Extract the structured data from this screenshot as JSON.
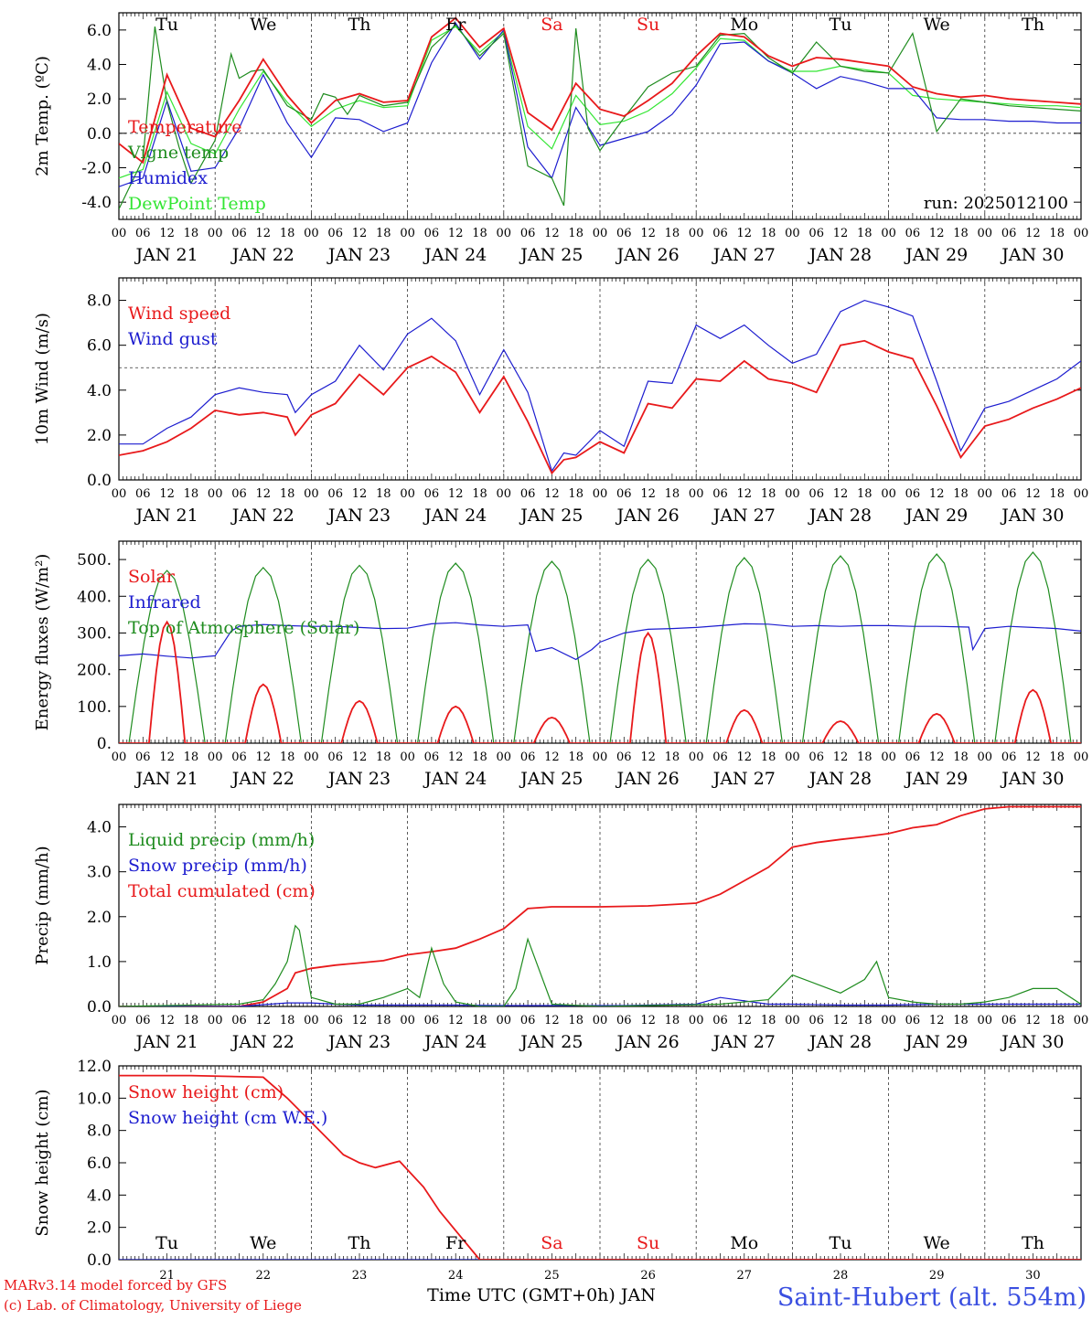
{
  "days": [
    "21",
    "22",
    "23",
    "24",
    "25",
    "26",
    "27",
    "28",
    "29",
    "30"
  ],
  "day_labels": [
    "JAN 21",
    "JAN 22",
    "JAN 23",
    "JAN 24",
    "JAN 25",
    "JAN 26",
    "JAN 27",
    "JAN 28",
    "JAN 29",
    "JAN 30"
  ],
  "weekdays": [
    "Tu",
    "We",
    "Th",
    "Fr",
    "Sa",
    "Su",
    "Mo",
    "Tu",
    "We",
    "Th"
  ],
  "weekend_weekdays": [
    "Sa",
    "Su"
  ],
  "hour_labels": [
    "00",
    "06",
    "12",
    "18"
  ],
  "end_hour_label": "00",
  "colors": {
    "red": "#e8191b",
    "green": "#1f8c1f",
    "blue": "#1c1ccf",
    "lime": "#33e633",
    "weekend": "#e8191b",
    "title": "#3a4fe0"
  },
  "footer": {
    "left_line1": "MARv3.14 model forced by GFS",
    "left_line2": "(c) Lab. of Climatology, University of Liege",
    "xlabel": "Time UTC (GMT+0h) JAN",
    "station": "Saint-Hubert (alt. 554m)"
  },
  "chart_data": [
    {
      "type": "line",
      "ylabel": "2m Temp. (ºC)",
      "ylim": [
        -5,
        7
      ],
      "yticks": [
        -4,
        -2,
        0,
        2,
        4,
        6
      ],
      "ytick_labels": [
        "-4.0",
        "-2.0",
        "0.0",
        "2.0",
        "4.0",
        "6.0"
      ],
      "reference_line": 0,
      "annotation": "run: 2025012100",
      "x_unit": "hours since JAN 21 00 UTC",
      "series": [
        {
          "name": "Temperature",
          "color": "red",
          "x": [
            0,
            6,
            12,
            18,
            24,
            30,
            36,
            42,
            48,
            54,
            60,
            66,
            72,
            78,
            84,
            90,
            96,
            102,
            108,
            114,
            120,
            126,
            132,
            138,
            144,
            150,
            156,
            162,
            168,
            174,
            180,
            186,
            192,
            198,
            204,
            210,
            216,
            222,
            228,
            234,
            240
          ],
          "y": [
            -0.6,
            -1.7,
            3.4,
            0.3,
            -0.2,
            1.9,
            4.3,
            2.2,
            0.6,
            1.9,
            2.3,
            1.8,
            1.9,
            5.6,
            6.7,
            5.0,
            6.1,
            1.2,
            0.2,
            2.9,
            1.4,
            1.0,
            1.9,
            2.9,
            4.5,
            5.8,
            5.6,
            4.5,
            3.9,
            4.4,
            4.3,
            4.1,
            3.9,
            2.7,
            2.3,
            2.1,
            2.2,
            2.0,
            1.9,
            1.8,
            1.7
          ]
        },
        {
          "name": "Vigne temp",
          "color": "green",
          "x": [
            0,
            6,
            9,
            12,
            15,
            18,
            24,
            28,
            30,
            33,
            36,
            42,
            48,
            51,
            54,
            57,
            60,
            66,
            72,
            78,
            84,
            90,
            96,
            102,
            108,
            111,
            114,
            117,
            120,
            126,
            132,
            138,
            144,
            150,
            156,
            162,
            168,
            174,
            180,
            186,
            192,
            198,
            204,
            210,
            216,
            222,
            228,
            234,
            240
          ],
          "y": [
            -4.4,
            -1.5,
            6.2,
            1.8,
            -0.8,
            -2.9,
            -0.4,
            4.6,
            3.2,
            3.6,
            3.7,
            1.6,
            0.8,
            2.3,
            2.1,
            1.1,
            2.2,
            1.6,
            1.8,
            5.0,
            6.3,
            4.5,
            5.8,
            -1.9,
            -2.6,
            -4.2,
            6.1,
            0.3,
            -1.0,
            0.9,
            2.7,
            3.5,
            3.9,
            5.7,
            5.8,
            4.4,
            3.5,
            5.3,
            3.9,
            3.6,
            3.5,
            5.8,
            0.1,
            2.0,
            1.8,
            1.6,
            1.5,
            1.4,
            1.3
          ]
        },
        {
          "name": "Humidex",
          "color": "blue",
          "x": [
            0,
            6,
            12,
            18,
            24,
            30,
            36,
            42,
            48,
            54,
            60,
            66,
            72,
            78,
            84,
            90,
            96,
            102,
            108,
            114,
            120,
            126,
            132,
            138,
            144,
            150,
            156,
            162,
            168,
            174,
            180,
            186,
            192,
            198,
            204,
            210,
            216,
            222,
            228,
            234,
            240
          ],
          "y": [
            -3.1,
            -2.6,
            1.9,
            -2.2,
            -2.0,
            0.3,
            3.4,
            0.6,
            -1.4,
            0.9,
            0.8,
            0.1,
            0.6,
            4.1,
            6.4,
            4.3,
            6.0,
            -0.8,
            -2.6,
            1.5,
            -0.7,
            -0.3,
            0.1,
            1.1,
            2.8,
            5.2,
            5.3,
            4.2,
            3.5,
            2.6,
            3.3,
            3.0,
            2.6,
            2.6,
            0.9,
            0.8,
            0.8,
            0.7,
            0.7,
            0.6,
            0.6
          ]
        },
        {
          "name": "DewPoint Temp",
          "color": "lime",
          "x": [
            0,
            6,
            12,
            18,
            24,
            30,
            36,
            42,
            48,
            54,
            60,
            66,
            72,
            78,
            84,
            90,
            96,
            102,
            108,
            114,
            120,
            126,
            132,
            138,
            144,
            150,
            156,
            162,
            168,
            174,
            180,
            186,
            192,
            198,
            204,
            210,
            216,
            222,
            228,
            234,
            240
          ],
          "y": [
            -2.6,
            -2.1,
            2.4,
            -0.6,
            -1.2,
            1.4,
            3.6,
            1.8,
            0.4,
            1.4,
            1.9,
            1.5,
            1.6,
            5.4,
            6.2,
            4.7,
            5.9,
            0.4,
            -0.9,
            2.2,
            0.5,
            0.7,
            1.3,
            2.3,
            3.8,
            5.5,
            5.4,
            4.2,
            3.6,
            3.6,
            3.9,
            3.7,
            3.5,
            2.2,
            2.0,
            1.9,
            1.8,
            1.7,
            1.6,
            1.6,
            1.5
          ]
        }
      ]
    },
    {
      "type": "line",
      "ylabel": "10m Wind (m/s)",
      "ylim": [
        0,
        9
      ],
      "yticks": [
        0,
        2,
        4,
        6,
        8
      ],
      "ytick_labels": [
        "0.0",
        "2.0",
        "4.0",
        "6.0",
        "8.0"
      ],
      "reference_line": 5,
      "series": [
        {
          "name": "Wind speed",
          "color": "red",
          "x": [
            0,
            6,
            12,
            18,
            24,
            30,
            36,
            42,
            44,
            48,
            54,
            60,
            66,
            72,
            78,
            84,
            90,
            96,
            102,
            108,
            111,
            114,
            120,
            126,
            132,
            138,
            144,
            150,
            156,
            162,
            168,
            174,
            180,
            186,
            192,
            198,
            204,
            210,
            216,
            222,
            228,
            234,
            240
          ],
          "y": [
            1.1,
            1.3,
            1.7,
            2.3,
            3.1,
            2.9,
            3.0,
            2.8,
            2.0,
            2.9,
            3.4,
            4.7,
            3.8,
            5.0,
            5.5,
            4.8,
            3.0,
            4.6,
            2.6,
            0.3,
            0.9,
            1.0,
            1.7,
            1.2,
            3.4,
            3.2,
            4.5,
            4.4,
            5.3,
            4.5,
            4.3,
            3.9,
            6.0,
            6.2,
            5.7,
            5.4,
            3.3,
            1.0,
            2.4,
            2.7,
            3.2,
            3.6,
            4.1
          ]
        },
        {
          "name": "Wind gust",
          "color": "blue",
          "x": [
            0,
            6,
            12,
            18,
            24,
            30,
            36,
            42,
            44,
            48,
            54,
            60,
            66,
            72,
            78,
            84,
            90,
            96,
            102,
            108,
            111,
            114,
            120,
            126,
            132,
            138,
            144,
            150,
            156,
            162,
            168,
            174,
            180,
            186,
            192,
            198,
            204,
            210,
            216,
            222,
            228,
            234,
            240
          ],
          "y": [
            1.6,
            1.6,
            2.3,
            2.8,
            3.8,
            4.1,
            3.9,
            3.8,
            3.0,
            3.8,
            4.4,
            6.0,
            4.9,
            6.5,
            7.2,
            6.2,
            3.8,
            5.8,
            3.9,
            0.4,
            1.2,
            1.1,
            2.2,
            1.5,
            4.4,
            4.3,
            6.9,
            6.3,
            6.9,
            6.0,
            5.2,
            5.6,
            7.5,
            8.0,
            7.7,
            7.3,
            4.4,
            1.3,
            3.2,
            3.5,
            4.0,
            4.5,
            5.3
          ]
        }
      ]
    },
    {
      "type": "line",
      "ylabel": "Energy fluxes (W/m²)",
      "ylim": [
        0,
        550
      ],
      "yticks": [
        0,
        100,
        200,
        300,
        400,
        500
      ],
      "ytick_labels": [
        "0.",
        "100.",
        "200.",
        "300.",
        "400.",
        "500."
      ],
      "series": [
        {
          "name": "Solar",
          "color": "red",
          "daily_peaks": [
            330,
            160,
            115,
            100,
            70,
            300,
            90,
            60,
            80,
            145
          ],
          "peak_hour": 12,
          "width_hours": 9
        },
        {
          "name": "Infrared",
          "color": "blue",
          "x": [
            0,
            6,
            12,
            18,
            24,
            28,
            30,
            36,
            42,
            48,
            54,
            60,
            66,
            72,
            78,
            84,
            90,
            96,
            102,
            104,
            108,
            114,
            118,
            120,
            126,
            132,
            138,
            144,
            150,
            156,
            162,
            168,
            174,
            180,
            186,
            192,
            198,
            204,
            212,
            213,
            216,
            222,
            228,
            234,
            240
          ],
          "y": [
            238,
            243,
            237,
            232,
            238,
            305,
            318,
            323,
            320,
            318,
            318,
            315,
            312,
            313,
            325,
            328,
            322,
            318,
            322,
            250,
            260,
            228,
            255,
            275,
            300,
            310,
            312,
            315,
            320,
            325,
            324,
            318,
            320,
            318,
            320,
            320,
            318,
            318,
            316,
            255,
            312,
            318,
            315,
            312,
            305
          ]
        },
        {
          "name": "Top of Atmosphere (Solar)",
          "color": "green",
          "daily_peaks": [
            470,
            478,
            484,
            490,
            495,
            500,
            505,
            510,
            515,
            520
          ],
          "peak_hour": 12,
          "width_hours": 19
        }
      ]
    },
    {
      "type": "line",
      "ylabel": "Precip (mm/h)",
      "ylim": [
        0,
        4.5
      ],
      "yticks": [
        0,
        1,
        2,
        3,
        4
      ],
      "ytick_labels": [
        "0.0",
        "1.0",
        "2.0",
        "3.0",
        "4.0"
      ],
      "series": [
        {
          "name": "Liquid precip (mm/h)",
          "color": "green",
          "x": [
            0,
            30,
            36,
            39,
            42,
            44,
            45,
            48,
            54,
            60,
            66,
            72,
            75,
            78,
            81,
            84,
            90,
            96,
            99,
            102,
            108,
            120,
            150,
            162,
            168,
            174,
            180,
            186,
            189,
            192,
            198,
            204,
            210,
            216,
            222,
            228,
            234,
            240
          ],
          "y": [
            0,
            0.05,
            0.15,
            0.5,
            1.0,
            1.8,
            1.7,
            0.2,
            0.05,
            0.05,
            0.2,
            0.4,
            0.2,
            1.3,
            0.5,
            0.1,
            0,
            0,
            0.4,
            1.5,
            0.05,
            0,
            0.05,
            0.15,
            0.7,
            0.5,
            0.3,
            0.6,
            1.0,
            0.2,
            0.1,
            0.05,
            0.05,
            0.1,
            0.2,
            0.4,
            0.4,
            0.05
          ]
        },
        {
          "name": "Snow precip (mm/h)",
          "color": "blue",
          "x": [
            0,
            30,
            42,
            48,
            54,
            60,
            72,
            84,
            96,
            108,
            120,
            126,
            144,
            150,
            162,
            168,
            180,
            192,
            204,
            216,
            228,
            240
          ],
          "y": [
            0,
            0,
            0.08,
            0.08,
            0.05,
            0.03,
            0.03,
            0.03,
            0.02,
            0.02,
            0.02,
            0.02,
            0.05,
            0.2,
            0.05,
            0.05,
            0.03,
            0.03,
            0.05,
            0.05,
            0.05,
            0.05
          ]
        },
        {
          "name": "Total cumulated (cm)",
          "color": "red",
          "x": [
            0,
            30,
            36,
            42,
            44,
            48,
            54,
            60,
            66,
            72,
            78,
            84,
            90,
            96,
            102,
            108,
            120,
            132,
            144,
            150,
            156,
            162,
            168,
            174,
            180,
            186,
            192,
            198,
            204,
            210,
            216,
            222,
            228,
            234,
            240
          ],
          "y": [
            0,
            0,
            0.1,
            0.4,
            0.75,
            0.85,
            0.92,
            0.97,
            1.02,
            1.15,
            1.22,
            1.3,
            1.5,
            1.73,
            2.18,
            2.22,
            2.22,
            2.24,
            2.3,
            2.5,
            2.8,
            3.1,
            3.55,
            3.65,
            3.72,
            3.78,
            3.85,
            3.98,
            4.05,
            4.25,
            4.4,
            4.45,
            4.45,
            4.45,
            4.45
          ]
        }
      ]
    },
    {
      "type": "line",
      "ylabel": "Snow height (cm)",
      "ylim": [
        0,
        12
      ],
      "yticks": [
        0,
        2,
        4,
        6,
        8,
        10,
        12
      ],
      "ytick_labels": [
        "0.0",
        "2.0",
        "4.0",
        "6.0",
        "8.0",
        "10.0",
        "12.0"
      ],
      "series": [
        {
          "name": "Snow height (cm)",
          "color": "red",
          "x": [
            0,
            18,
            36,
            42,
            48,
            54,
            56,
            60,
            64,
            70,
            76,
            80,
            84,
            90,
            240
          ],
          "y": [
            11.4,
            11.4,
            11.3,
            10.0,
            8.5,
            7.0,
            6.5,
            6.0,
            5.7,
            6.1,
            4.5,
            3.0,
            1.8,
            0,
            0
          ]
        },
        {
          "name": "Snow height (cm W.E.)",
          "color": "blue",
          "x": [
            0,
            240
          ],
          "y": [
            0,
            0
          ]
        }
      ]
    }
  ]
}
